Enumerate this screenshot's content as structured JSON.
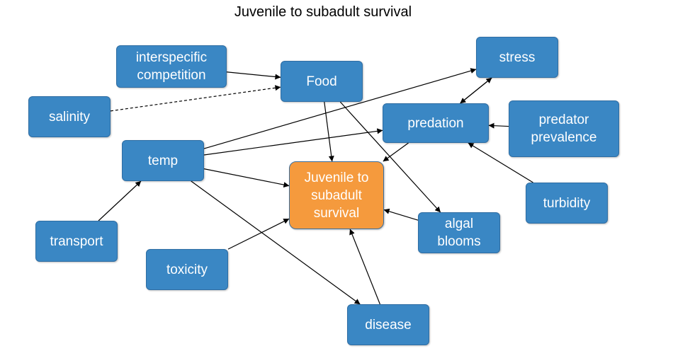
{
  "title": "Juvenile to subadult survival",
  "nodes": {
    "interspecific": {
      "label": "interspecific\ncompetition"
    },
    "food": {
      "label": "Food"
    },
    "stress": {
      "label": "stress"
    },
    "salinity": {
      "label": "salinity"
    },
    "predation": {
      "label": "predation"
    },
    "predator_prevalence": {
      "label": "predator\nprevalence"
    },
    "temp": {
      "label": "temp"
    },
    "juvenile": {
      "label": "Juvenile to\nsubadult\nsurvival"
    },
    "turbidity": {
      "label": "turbidity"
    },
    "transport": {
      "label": "transport"
    },
    "algal_blooms": {
      "label": "algal\nblooms"
    },
    "toxicity": {
      "label": "toxicity"
    },
    "disease": {
      "label": "disease"
    }
  },
  "edges": [
    {
      "from": "interspecific",
      "to": "food",
      "style": "solid"
    },
    {
      "from": "salinity",
      "to": "food",
      "style": "dashed"
    },
    {
      "from": "food",
      "to": "juvenile",
      "style": "solid"
    },
    {
      "from": "food",
      "to": "algal_blooms",
      "style": "solid"
    },
    {
      "from": "temp",
      "to": "stress",
      "style": "solid"
    },
    {
      "from": "temp",
      "to": "predation",
      "style": "solid"
    },
    {
      "from": "temp",
      "to": "juvenile",
      "style": "solid"
    },
    {
      "from": "temp",
      "to": "disease",
      "style": "solid"
    },
    {
      "from": "transport",
      "to": "temp",
      "style": "solid"
    },
    {
      "from": "toxicity",
      "to": "juvenile",
      "style": "solid"
    },
    {
      "from": "disease",
      "to": "juvenile",
      "style": "solid"
    },
    {
      "from": "algal_blooms",
      "to": "juvenile",
      "style": "solid"
    },
    {
      "from": "predation",
      "to": "juvenile",
      "style": "solid"
    },
    {
      "from": "stress",
      "to": "predation",
      "style": "solid"
    },
    {
      "from": "predation",
      "to": "stress",
      "style": "solid"
    },
    {
      "from": "predator_prevalence",
      "to": "predation",
      "style": "solid"
    },
    {
      "from": "turbidity",
      "to": "predation",
      "style": "solid"
    }
  ],
  "colors": {
    "node_fill": "#3a87c4",
    "central_fill": "#f59a3d",
    "edge": "#000000"
  }
}
